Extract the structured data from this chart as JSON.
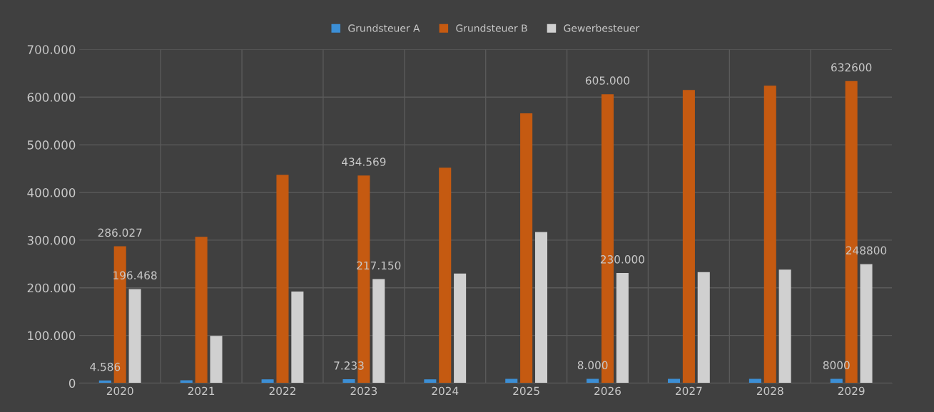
{
  "chart_data": {
    "type": "bar",
    "categories": [
      "2020",
      "2021",
      "2022",
      "2023",
      "2024",
      "2025",
      "2026",
      "2027",
      "2028",
      "2029"
    ],
    "series": [
      {
        "name": "Grundsteuer A",
        "color": "#3c8fd6",
        "values": [
          4586,
          5000,
          7000,
          7233,
          7000,
          8000,
          8000,
          8000,
          8000,
          8000
        ],
        "value_labels": [
          "4.586",
          null,
          null,
          "7.233",
          null,
          null,
          "8.000",
          null,
          null,
          "8000"
        ]
      },
      {
        "name": "Grundsteuer B",
        "color": "#c55a11",
        "values": [
          286027,
          306000,
          436000,
          434569,
          451000,
          565000,
          605000,
          614000,
          623000,
          632600
        ],
        "value_labels": [
          "286.027",
          null,
          null,
          "434.569",
          null,
          null,
          "605.000",
          null,
          null,
          "632600"
        ]
      },
      {
        "name": "Gewerbesteuer",
        "color": "#d0d0d0",
        "values": [
          196468,
          98000,
          191000,
          217150,
          229000,
          316000,
          230000,
          232000,
          237000,
          248800
        ],
        "value_labels": [
          "196.468",
          null,
          null,
          "217.150",
          null,
          null,
          "230.000",
          null,
          null,
          "248800"
        ]
      }
    ],
    "ylim": [
      0,
      700000
    ],
    "yticks": [
      0,
      {
        "value": 100000,
        "label": "100.000"
      },
      {
        "value": 200000,
        "label": "200.000"
      },
      {
        "value": 300000,
        "label": "300.000"
      },
      {
        "value": 400000,
        "label": "400.000"
      },
      {
        "value": 500000,
        "label": "500.000"
      },
      {
        "value": 600000,
        "label": "600.000"
      },
      {
        "value": 700000,
        "label": "700.000"
      }
    ],
    "grid": true,
    "legend": "top"
  }
}
